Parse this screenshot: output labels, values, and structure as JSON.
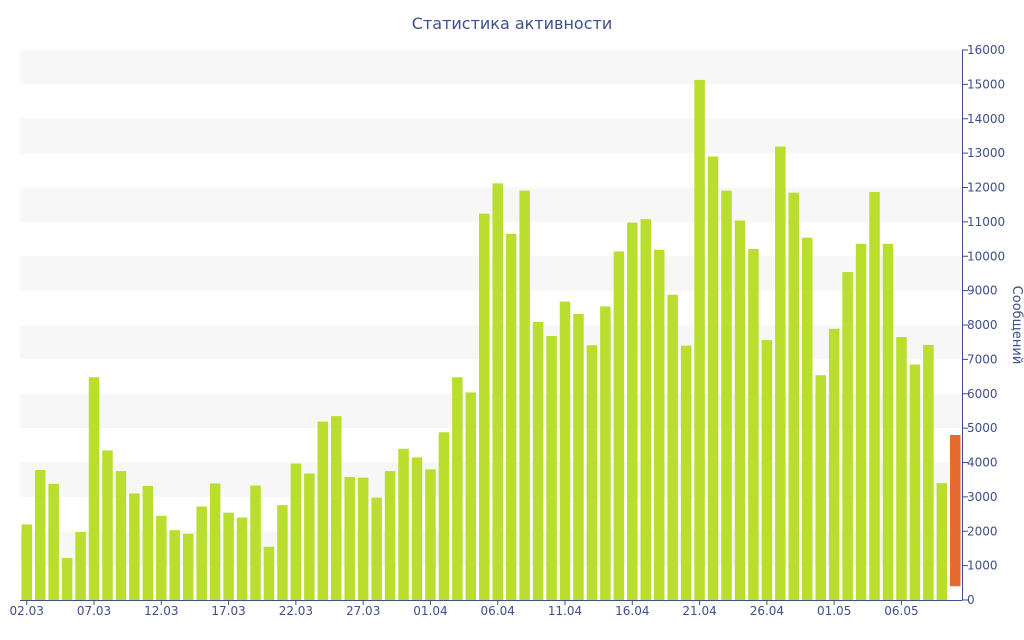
{
  "chart_data": {
    "type": "bar",
    "title": "Статистика активности",
    "xlabel": "",
    "ylabel": "Сообщений",
    "ylim": [
      0,
      16000
    ],
    "yticks": [
      0,
      1000,
      2000,
      3000,
      4000,
      5000,
      6000,
      7000,
      8000,
      9000,
      10000,
      11000,
      12000,
      13000,
      14000,
      15000,
      16000
    ],
    "xtick_labels": [
      "02.03",
      "07.03",
      "12.03",
      "17.03",
      "22.03",
      "27.03",
      "01.04",
      "06.04",
      "11.04",
      "16.04",
      "21.04",
      "26.04",
      "01.05",
      "06.05"
    ],
    "grid": "horizontal alternating bands",
    "colors": {
      "bar": "#b9de2e",
      "highlight": "#e46a2f",
      "text": "#3e4f8a",
      "band": "#f7f7f7"
    },
    "values": [
      2200,
      3780,
      3380,
      1220,
      1980,
      6480,
      4350,
      3750,
      3100,
      3320,
      2450,
      2030,
      1930,
      2720,
      3390,
      2540,
      2400,
      3330,
      1550,
      2760,
      3970,
      3680,
      5190,
      5350,
      3580,
      3560,
      2980,
      3750,
      4400,
      4150,
      3800,
      4880,
      6480,
      6040,
      11240,
      12120,
      10650,
      11910,
      8090,
      7680,
      8680,
      8320,
      7410,
      8540,
      10140,
      10980,
      11080,
      10190,
      8880,
      7400,
      15130,
      12900,
      11910,
      11040,
      10210,
      7560,
      13190,
      11850,
      10540,
      6540,
      7890,
      9540,
      10360,
      11870,
      10360,
      7650,
      6850,
      7420,
      3400
    ],
    "highlight_bar": {
      "values": [
        400,
        4800
      ]
    }
  }
}
